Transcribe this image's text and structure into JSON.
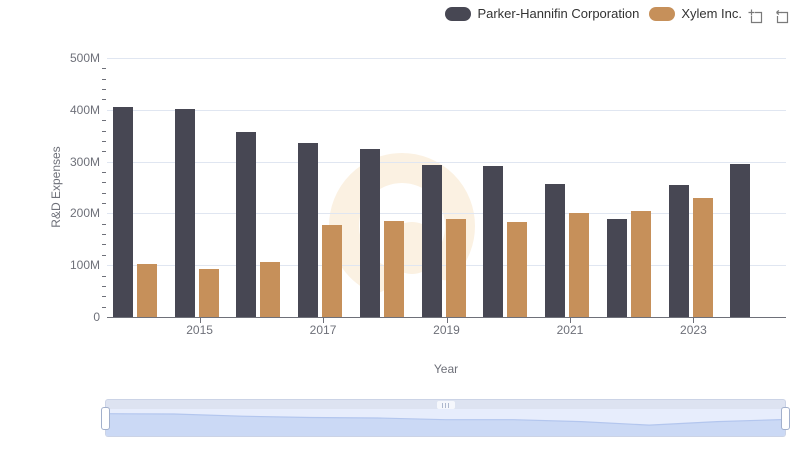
{
  "legend": {
    "items": [
      {
        "label": "Parker-Hannifin Corporation",
        "color": "#474753"
      },
      {
        "label": "Xylem Inc.",
        "color": "#C6905A"
      }
    ]
  },
  "chart_data": {
    "type": "bar",
    "title": "",
    "xlabel": "Year",
    "ylabel": "R&D Expenses",
    "unit": "M",
    "ylim": [
      0,
      500
    ],
    "grid": true,
    "legend_position": "top-right",
    "y_tick_labels": [
      "0",
      "100M",
      "200M",
      "300M",
      "400M",
      "500M"
    ],
    "x_tick_labels": [
      "2015",
      "2017",
      "2019",
      "2021",
      "2023"
    ],
    "x_tick_indices": [
      1,
      3,
      5,
      7,
      9
    ],
    "categories": [
      "2014",
      "2015",
      "2016",
      "2017",
      "2018",
      "2019",
      "2020",
      "2021",
      "2022",
      "2023",
      "2024"
    ],
    "series": [
      {
        "name": "Parker-Hannifin Corporation",
        "color": "#474753",
        "values": [
          406,
          401,
          358,
          335,
          325,
          293,
          292,
          256,
          189,
          255,
          296
        ]
      },
      {
        "name": "Xylem Inc.",
        "color": "#C6905A",
        "values": [
          102,
          92,
          107,
          178,
          186,
          189,
          184,
          201,
          205,
          229,
          null
        ]
      }
    ]
  },
  "colors": {
    "grid_line": "#E0E6F1",
    "axis": "#6E7079",
    "legend_text": "#333333",
    "watermark": "#FBF1E2",
    "nav_area_fill": "#CBD9F5",
    "nav_line": "#B3C6EE"
  }
}
